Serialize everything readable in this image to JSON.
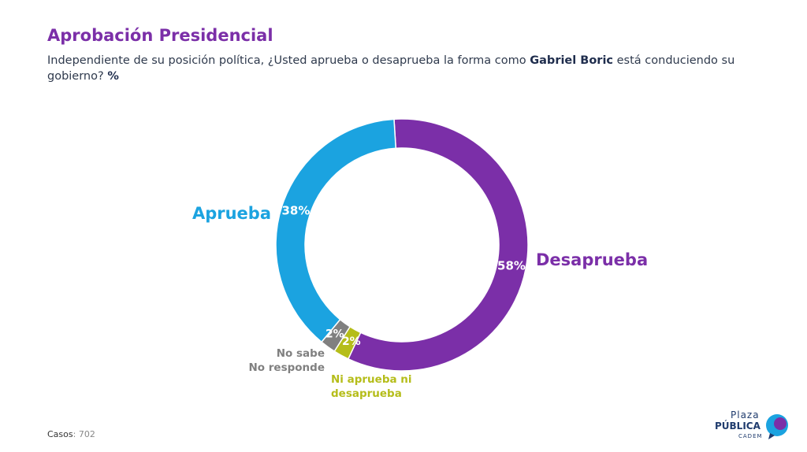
{
  "header": {
    "title": "Aprobación Presidencial",
    "subtitle_pre": "Independiente de su posición política, ¿Usted aprueba o desaprueba la forma como ",
    "subtitle_bold": "Gabriel Boric",
    "subtitle_post": " está conduciendo su gobierno? ",
    "subtitle_unit": "%"
  },
  "chart_data": {
    "type": "pie",
    "variant": "donut",
    "slices": [
      {
        "label": "Desaprueba",
        "value": 58,
        "display": "58%",
        "color": "#7B2FA8"
      },
      {
        "label": "Ni aprueba ni desaprueba",
        "value": 2,
        "display": "2%",
        "color": "#B5BD1A"
      },
      {
        "label": "No sabe No responde",
        "value": 2,
        "display": "2%",
        "color": "#808080"
      },
      {
        "label": "Aprueba",
        "value": 38,
        "display": "38%",
        "color": "#1BA3E0"
      }
    ]
  },
  "labels": {
    "aprueba": "Aprueba",
    "desaprueba": "Desaprueba",
    "no_sabe_1": "No sabe",
    "no_sabe_2": "No responde",
    "ni_1": "Ni aprueba ni",
    "ni_2": "desaprueba"
  },
  "footer": {
    "cases_label": "Casos",
    "cases_value": ": 702"
  },
  "logo": {
    "line1": "Plaza",
    "line2": "PÚBLICA",
    "line3": "CADEM"
  }
}
